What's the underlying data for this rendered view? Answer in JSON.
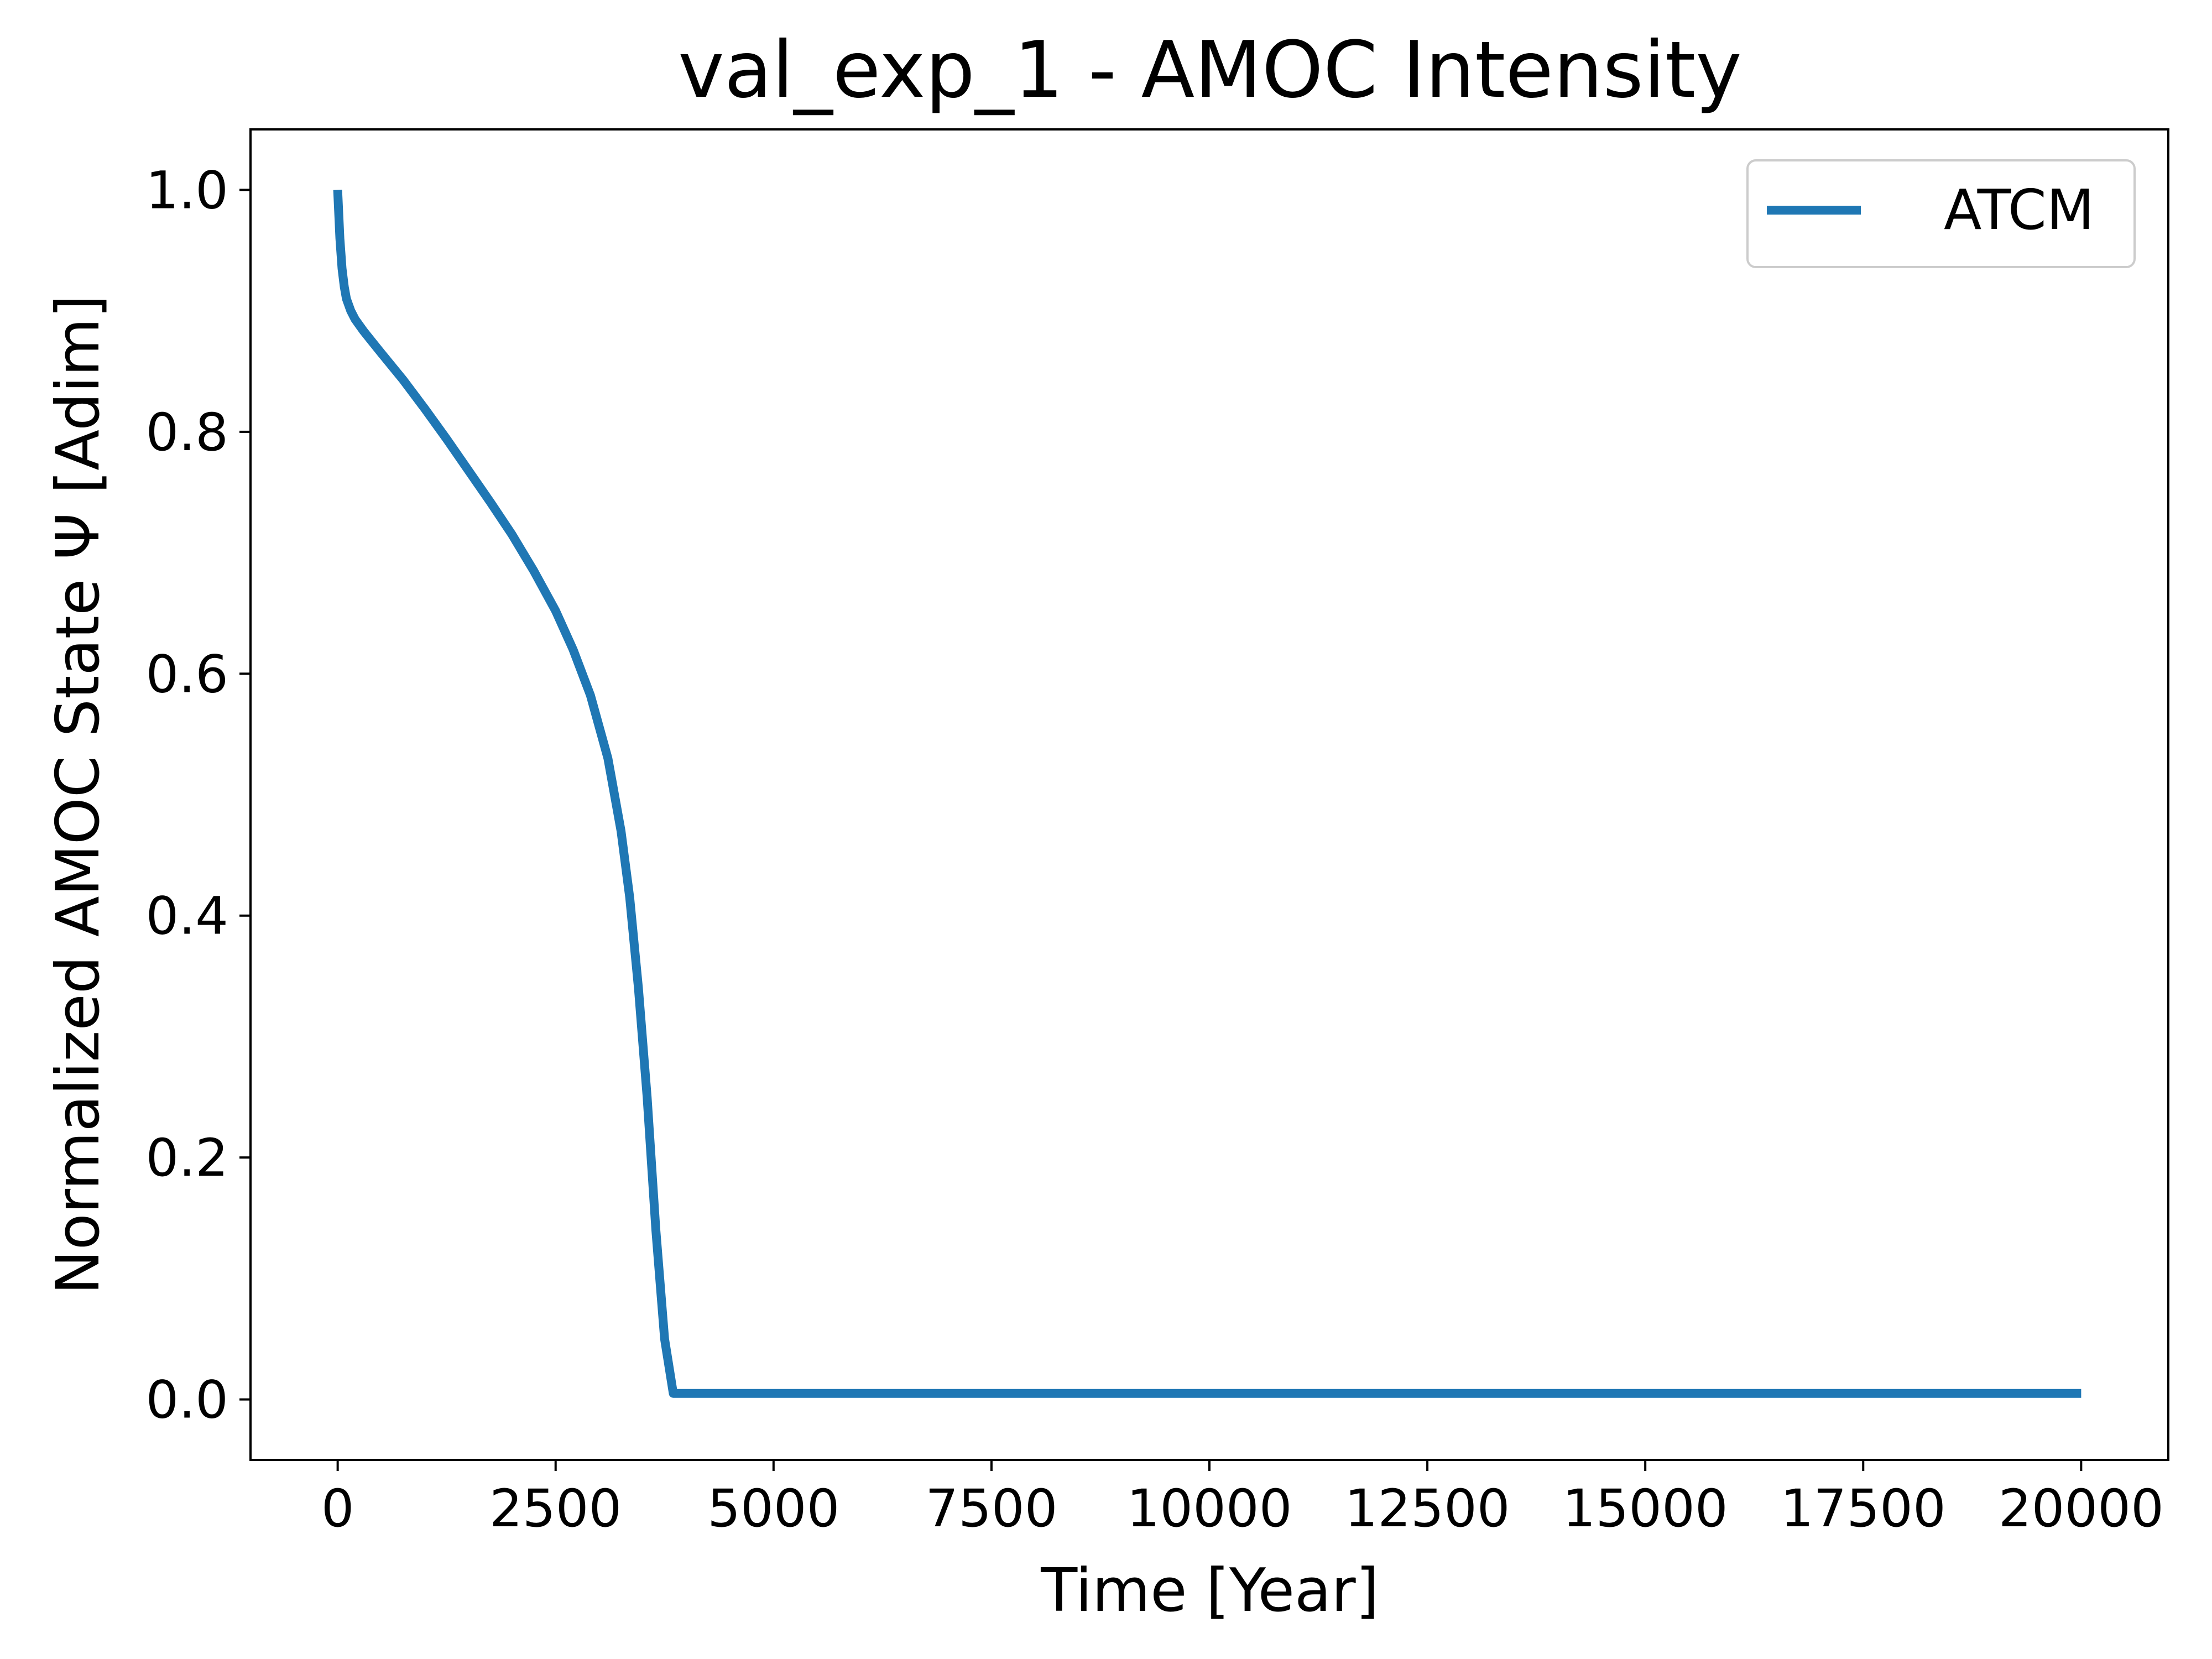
{
  "chart_data": {
    "type": "line",
    "title": "val_exp_1 - AMOC Intensity",
    "xlabel": "Time [Year]",
    "ylabel": "Normalized AMOC State Ψ [Adim]",
    "xlim": [
      -1000,
      21000
    ],
    "ylim": [
      -0.05,
      1.05
    ],
    "x_ticks": [
      0,
      2500,
      5000,
      7500,
      10000,
      12500,
      15000,
      17500,
      20000
    ],
    "x_tick_labels": [
      "0",
      "2500",
      "5000",
      "7500",
      "10000",
      "12500",
      "15000",
      "17500",
      "20000"
    ],
    "y_ticks": [
      0.0,
      0.2,
      0.4,
      0.6,
      0.8,
      1.0
    ],
    "y_tick_labels": [
      "0.0",
      "0.2",
      "0.4",
      "0.6",
      "0.8",
      "1.0"
    ],
    "grid": false,
    "legend": {
      "position": "upper right",
      "entries": [
        "ATCM"
      ]
    },
    "series": [
      {
        "name": "ATCM",
        "color": "#1f77b4",
        "x": [
          0,
          25,
          50,
          75,
          100,
          150,
          200,
          250,
          300,
          400,
          500,
          750,
          1000,
          1250,
          1500,
          1750,
          2000,
          2250,
          2500,
          2700,
          2900,
          3100,
          3250,
          3350,
          3450,
          3550,
          3650,
          3750,
          3850,
          3900,
          3950,
          4000,
          5000,
          7500,
          10000,
          12500,
          15000,
          17500,
          20000
        ],
        "y": [
          1.0,
          0.96,
          0.935,
          0.92,
          0.91,
          0.9,
          0.893,
          0.888,
          0.883,
          0.874,
          0.865,
          0.843,
          0.819,
          0.794,
          0.768,
          0.742,
          0.715,
          0.685,
          0.652,
          0.62,
          0.582,
          0.53,
          0.47,
          0.415,
          0.34,
          0.25,
          0.14,
          0.05,
          0.005,
          0.005,
          0.005,
          0.005,
          0.005,
          0.005,
          0.005,
          0.005,
          0.005,
          0.005,
          0.005
        ]
      }
    ]
  }
}
